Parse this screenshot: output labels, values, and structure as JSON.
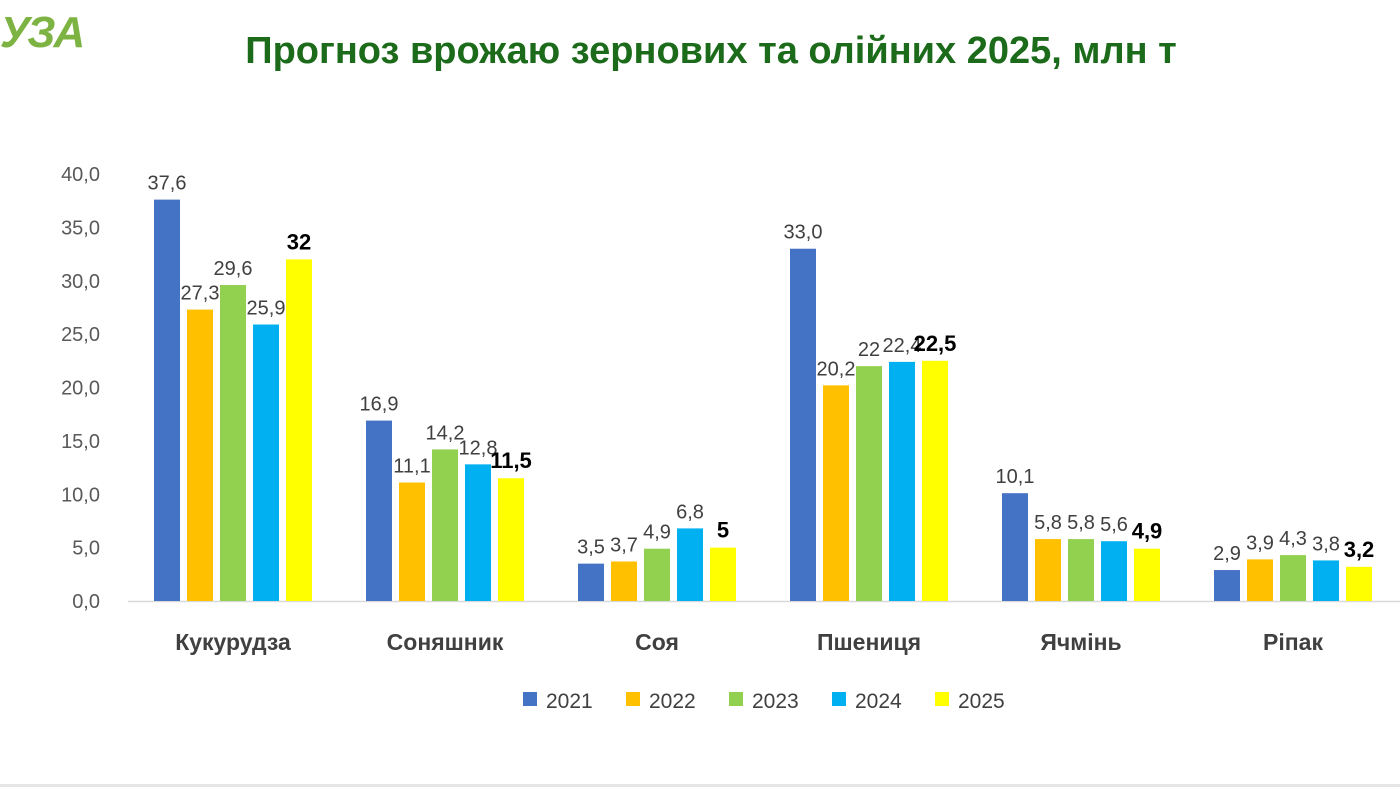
{
  "logo": {
    "text": "УЗА"
  },
  "chart_data": {
    "type": "bar",
    "title": "Прогноз врожаю зернових та олійних 2025, млн т",
    "categories": [
      "Кукурудза",
      "Соняшник",
      "Соя",
      "Пшениця",
      "Ячмінь",
      "Ріпак"
    ],
    "series": [
      {
        "name": "2021",
        "color": "#4472c4",
        "values": [
          37.6,
          16.9,
          3.5,
          33.0,
          10.1,
          2.9
        ],
        "labels": [
          "37,6",
          "16,9",
          "3,5",
          "33,0",
          "10,1",
          "2,9"
        ],
        "bold": false
      },
      {
        "name": "2022",
        "color": "#ffc000",
        "values": [
          27.3,
          11.1,
          3.7,
          20.2,
          5.8,
          3.9
        ],
        "labels": [
          "27,3",
          "11,1",
          "3,7",
          "20,2",
          "5,8",
          "3,9"
        ],
        "bold": false
      },
      {
        "name": "2023",
        "color": "#92d050",
        "values": [
          29.6,
          14.2,
          4.9,
          22,
          5.8,
          4.3
        ],
        "labels": [
          "29,6",
          "14,2",
          "4,9",
          "22",
          "5,8",
          "4,3"
        ],
        "bold": false
      },
      {
        "name": "2024",
        "color": "#00b0f0",
        "values": [
          25.9,
          12.8,
          6.8,
          22.4,
          5.6,
          3.8
        ],
        "labels": [
          "25,9",
          "12,8",
          "6,8",
          "22,4",
          "5,6",
          "3,8"
        ],
        "bold": false
      },
      {
        "name": "2025",
        "color": "#ffff00",
        "values": [
          32,
          11.5,
          5,
          22.5,
          4.9,
          3.2
        ],
        "labels": [
          "32",
          "11,5",
          "5",
          "22,5",
          "4,9",
          "3,2"
        ],
        "bold": true
      }
    ],
    "yticks": [
      "0,0",
      "5,0",
      "10,0",
      "15,0",
      "20,0",
      "25,0",
      "30,0",
      "35,0",
      "40,0"
    ],
    "ylim": [
      0,
      40
    ],
    "legend_position": "bottom"
  }
}
